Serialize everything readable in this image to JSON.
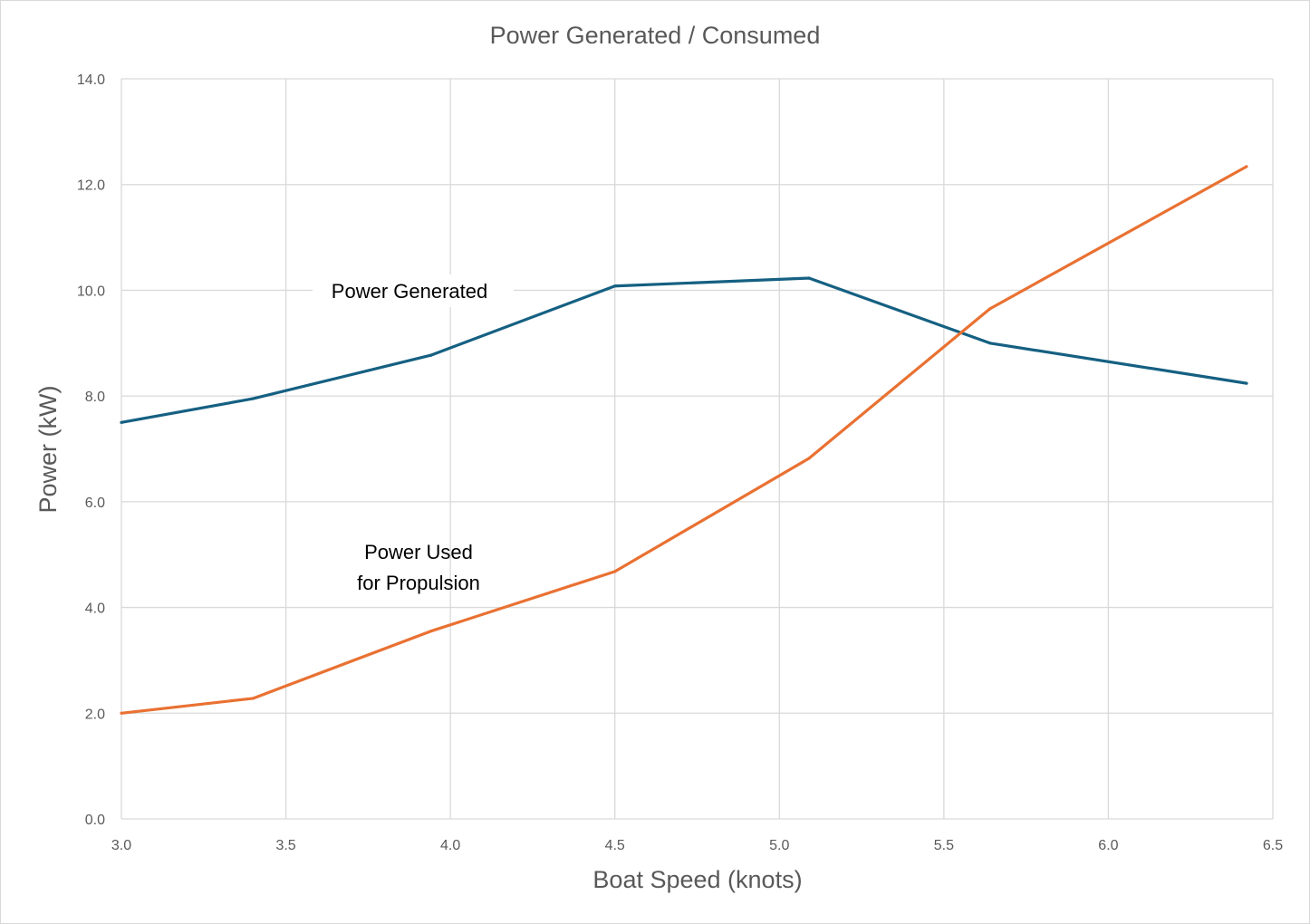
{
  "chart_data": {
    "type": "line",
    "title": "Power Generated / Consumed",
    "xlabel": "Boat Speed (knots)",
    "ylabel": "Power (kW)",
    "xlim": [
      3.0,
      6.5
    ],
    "ylim": [
      0,
      14
    ],
    "xticks": [
      "3.0",
      "3.5",
      "4.0",
      "4.5",
      "5.0",
      "5.5",
      "6.0",
      "6.5"
    ],
    "yticks": [
      "0.0",
      "2.0",
      "4.0",
      "6.0",
      "8.0",
      "10.0",
      "12.0",
      "14.0"
    ],
    "grid": true,
    "legend": "none",
    "series": [
      {
        "name": "Power Generated",
        "color": "#156082",
        "x": [
          3.0,
          3.4,
          3.94,
          4.5,
          5.09,
          5.64,
          6.42
        ],
        "y": [
          7.5,
          7.95,
          8.77,
          10.08,
          10.23,
          9.0,
          8.24
        ]
      },
      {
        "name": "Power Used for Propulsion",
        "color": "#e97132",
        "x": [
          3.0,
          3.4,
          3.94,
          4.5,
          5.09,
          5.64,
          6.42
        ],
        "y": [
          2.0,
          2.28,
          3.55,
          4.68,
          6.82,
          9.65,
          12.34
        ]
      }
    ],
    "annotations": {
      "generated": "Power Generated",
      "used_line1": "Power Used",
      "used_line2": "for Propulsion"
    }
  }
}
